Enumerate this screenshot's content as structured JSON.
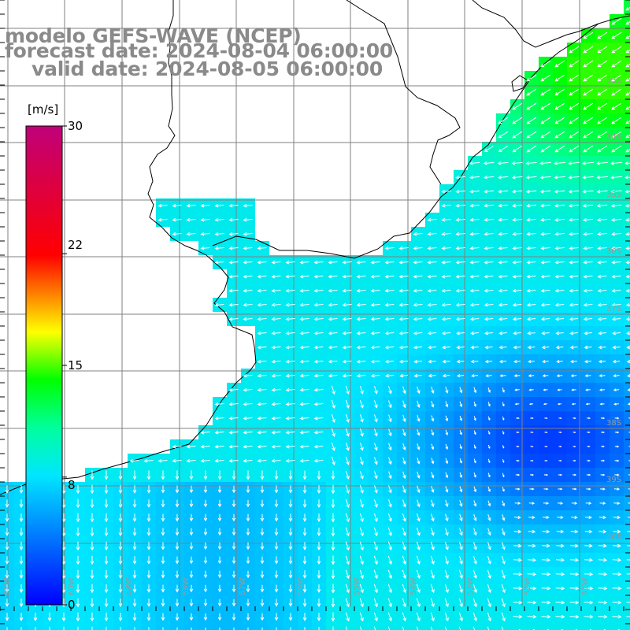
{
  "title": {
    "line1": "modelo GEFS-WAVE (NCEP)",
    "line2": "forecast date: 2024-08-04 06:00:00",
    "line3": "    valid date: 2024-08-05 06:00:00"
  },
  "colorbar": {
    "unit": "[m/s]",
    "ticks": [
      {
        "label": "30",
        "value": 30
      },
      {
        "label": "22",
        "value": 22
      },
      {
        "label": "15",
        "value": 15
      },
      {
        "label": "8",
        "value": 8
      },
      {
        "label": "0",
        "value": 0
      }
    ],
    "range": [
      0,
      30
    ],
    "colors": [
      "#0000ff",
      "#0088ff",
      "#00e6ff",
      "#00ff70",
      "#ffff00",
      "#ff0000",
      "#c0006a"
    ]
  },
  "grid": {
    "lat_labels": [
      "35S",
      "34S",
      "35S",
      "36S",
      "37S",
      "38S",
      "39S",
      "40S"
    ],
    "lon_labels": [
      "61W",
      "60W",
      "59W",
      "58W",
      "57W",
      "56W",
      "55W",
      "54W",
      "53W",
      "52W",
      "51W"
    ]
  },
  "colors": {
    "land": "#ffffff",
    "coast": "#000000",
    "gridline": "#808080",
    "arrow": "#ffffff",
    "title_text": "#8a8a8a"
  }
}
